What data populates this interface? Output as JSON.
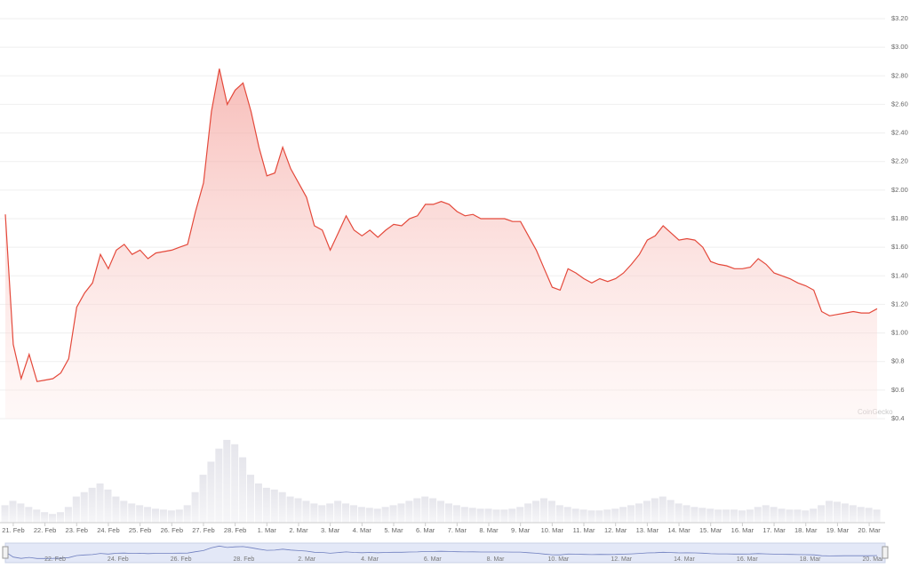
{
  "chart_data": {
    "type": "line",
    "color": "#e4493b",
    "grid": true,
    "watermark": "CoinGecko",
    "ylim": [
      0.4,
      3.2
    ],
    "yticks": [
      {
        "value": 0.4,
        "label": "$0.4"
      },
      {
        "value": 0.6,
        "label": "$0.6"
      },
      {
        "value": 0.8,
        "label": "$0.8"
      },
      {
        "value": 1.0,
        "label": "$1.00"
      },
      {
        "value": 1.2,
        "label": "$1.20"
      },
      {
        "value": 1.4,
        "label": "$1.40"
      },
      {
        "value": 1.6,
        "label": "$1.60"
      },
      {
        "value": 1.8,
        "label": "$1.80"
      },
      {
        "value": 2.0,
        "label": "$2.00"
      },
      {
        "value": 2.2,
        "label": "$2.20"
      },
      {
        "value": 2.4,
        "label": "$2.40"
      },
      {
        "value": 2.6,
        "label": "$2.60"
      },
      {
        "value": 2.8,
        "label": "$2.80"
      },
      {
        "value": 3.0,
        "label": "$3.00"
      },
      {
        "value": 3.2,
        "label": "$3.20"
      }
    ],
    "categories": [
      null,
      "21. Feb",
      null,
      null,
      null,
      "22. Feb",
      null,
      null,
      null,
      "23. Feb",
      null,
      null,
      null,
      "24. Feb",
      null,
      null,
      null,
      "25. Feb",
      null,
      null,
      null,
      "26. Feb",
      null,
      null,
      null,
      "27. Feb",
      null,
      null,
      null,
      "28. Feb",
      null,
      null,
      null,
      "1. Mar",
      null,
      null,
      null,
      "2. Mar",
      null,
      null,
      null,
      "3. Mar",
      null,
      null,
      null,
      "4. Mar",
      null,
      null,
      null,
      "5. Mar",
      null,
      null,
      null,
      "6. Mar",
      null,
      null,
      null,
      "7. Mar",
      null,
      null,
      null,
      "8. Mar",
      null,
      null,
      null,
      "9. Mar",
      null,
      null,
      null,
      "10. Mar",
      null,
      null,
      null,
      "11. Mar",
      null,
      null,
      null,
      "12. Mar",
      null,
      null,
      null,
      "13. Mar",
      null,
      null,
      null,
      "14. Mar",
      null,
      null,
      null,
      "15. Mar",
      null,
      null,
      null,
      "16. Mar",
      null,
      null,
      null,
      "17. Mar",
      null,
      null,
      null,
      "18. Mar",
      null,
      null,
      null,
      "19. Mar",
      null,
      null,
      null,
      "20. Mar",
      null
    ],
    "values": [
      1.83,
      0.92,
      0.68,
      0.85,
      0.66,
      0.67,
      0.68,
      0.72,
      0.82,
      1.18,
      1.28,
      1.35,
      1.55,
      1.45,
      1.58,
      1.62,
      1.55,
      1.58,
      1.52,
      1.56,
      1.57,
      1.58,
      1.6,
      1.62,
      1.85,
      2.05,
      2.55,
      2.85,
      2.6,
      2.7,
      2.75,
      2.55,
      2.3,
      2.1,
      2.12,
      2.3,
      2.15,
      2.05,
      1.95,
      1.75,
      1.72,
      1.58,
      1.7,
      1.82,
      1.72,
      1.68,
      1.72,
      1.67,
      1.72,
      1.76,
      1.75,
      1.8,
      1.82,
      1.9,
      1.9,
      1.92,
      1.9,
      1.85,
      1.82,
      1.83,
      1.8,
      1.8,
      1.8,
      1.8,
      1.78,
      1.78,
      1.68,
      1.58,
      1.45,
      1.32,
      1.3,
      1.45,
      1.42,
      1.38,
      1.35,
      1.38,
      1.36,
      1.38,
      1.42,
      1.48,
      1.55,
      1.65,
      1.68,
      1.75,
      1.7,
      1.65,
      1.66,
      1.65,
      1.6,
      1.5,
      1.48,
      1.47,
      1.45,
      1.45,
      1.46,
      1.52,
      1.48,
      1.42,
      1.4,
      1.38,
      1.35,
      1.33,
      1.3,
      1.15,
      1.12,
      1.13,
      1.14,
      1.15,
      1.14,
      1.14,
      1.17
    ],
    "vlim": [
      0,
      100
    ],
    "volume": [
      20,
      25,
      22,
      18,
      15,
      12,
      10,
      12,
      18,
      30,
      35,
      40,
      45,
      38,
      30,
      25,
      22,
      20,
      18,
      16,
      15,
      14,
      15,
      20,
      35,
      55,
      70,
      85,
      95,
      90,
      75,
      55,
      45,
      40,
      38,
      35,
      30,
      28,
      25,
      22,
      20,
      22,
      25,
      22,
      20,
      18,
      17,
      16,
      18,
      20,
      22,
      25,
      28,
      30,
      28,
      25,
      22,
      20,
      18,
      17,
      16,
      16,
      15,
      15,
      16,
      18,
      22,
      25,
      28,
      25,
      20,
      18,
      16,
      15,
      14,
      14,
      15,
      16,
      18,
      20,
      22,
      25,
      28,
      30,
      26,
      22,
      20,
      18,
      17,
      16,
      15,
      15,
      15,
      14,
      15,
      18,
      20,
      18,
      16,
      15,
      15,
      14,
      16,
      20,
      25,
      24,
      22,
      20,
      18,
      17,
      15
    ],
    "navigator_labels": [
      "22. Feb",
      "24. Feb",
      "26. Feb",
      "28. Feb",
      "2. Mar",
      "4. Mar",
      "6. Mar",
      "8. Mar",
      "10. Mar",
      "12. Mar",
      "14. Mar",
      "16. Mar",
      "18. Mar",
      "20. Mar"
    ]
  }
}
